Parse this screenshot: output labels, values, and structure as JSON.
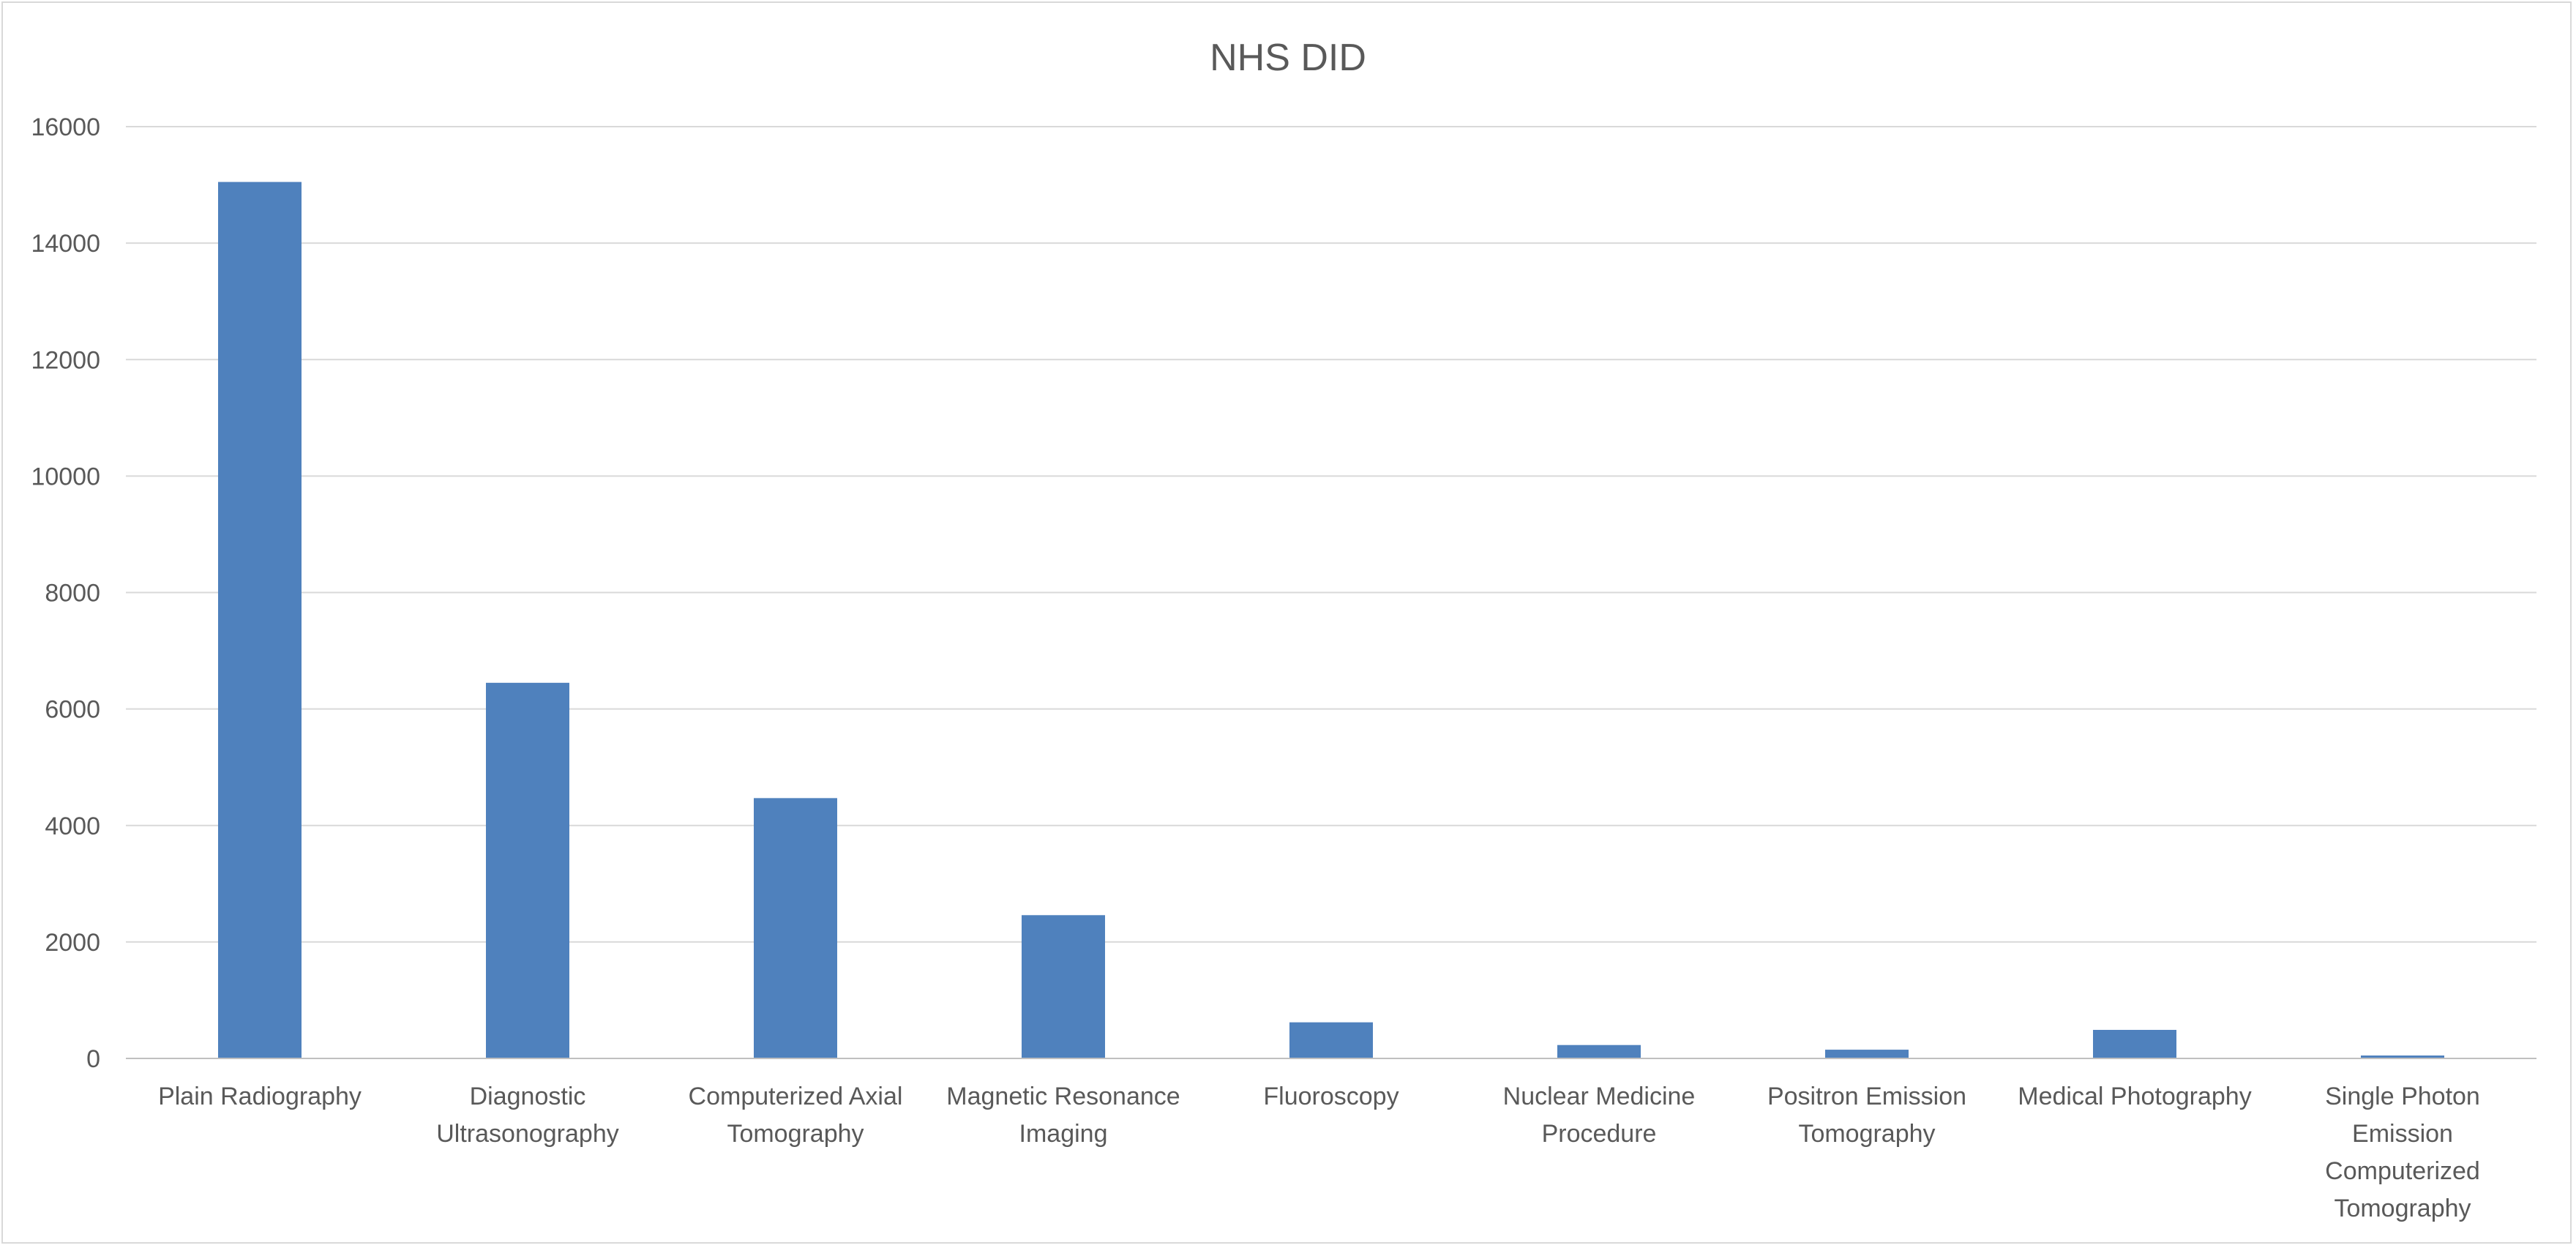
{
  "chart_data": {
    "type": "bar",
    "title": "NHS DID",
    "xlabel": "",
    "ylabel": "",
    "ylim": [
      0,
      16000
    ],
    "yticks": [
      0,
      2000,
      4000,
      6000,
      8000,
      10000,
      12000,
      14000,
      16000
    ],
    "grid": true,
    "legend": "none",
    "bar_color": "#4f81bd",
    "categories": [
      "Plain Radiography",
      "Diagnostic Ultrasonography",
      "Computerized Axial Tomography",
      "Magnetic Resonance Imaging",
      "Fluoroscopy",
      "Nuclear Medicine Procedure",
      "Positron Emission Tomography",
      "Medical Photography",
      "Single Photon Emission Computerized Tomography"
    ],
    "category_label_lines": [
      [
        "Plain Radiography"
      ],
      [
        "Diagnostic",
        "Ultrasonography"
      ],
      [
        "Computerized Axial",
        "Tomography"
      ],
      [
        "Magnetic Resonance",
        "Imaging"
      ],
      [
        "Fluoroscopy"
      ],
      [
        "Nuclear Medicine",
        "Procedure"
      ],
      [
        "Positron Emission",
        "Tomography"
      ],
      [
        "Medical Photography"
      ],
      [
        "Single Photon",
        "Emission",
        "Computerized",
        "Tomography"
      ]
    ],
    "values": [
      15050,
      6450,
      4470,
      2460,
      620,
      230,
      150,
      490,
      50
    ]
  }
}
